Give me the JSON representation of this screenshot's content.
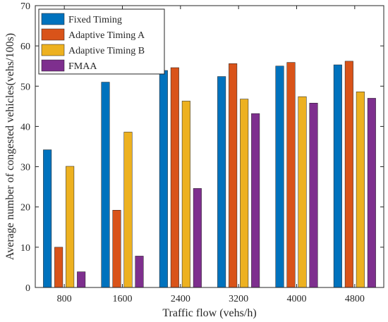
{
  "chart_data": {
    "type": "bar",
    "categories": [
      "800",
      "1600",
      "2400",
      "3200",
      "4000",
      "4800"
    ],
    "series": [
      {
        "name": "Fixed Timing",
        "color": "#0072BD",
        "values": [
          34.2,
          51.0,
          53.9,
          52.4,
          55.0,
          55.3
        ]
      },
      {
        "name": "Adaptive Timing A",
        "color": "#D95319",
        "values": [
          10.0,
          19.2,
          54.6,
          55.6,
          55.9,
          56.2
        ]
      },
      {
        "name": "Adaptive Timing B",
        "color": "#EDB120",
        "values": [
          30.1,
          38.6,
          46.3,
          46.8,
          47.4,
          48.6
        ]
      },
      {
        "name": "FMAA",
        "color": "#7E2F8E",
        "values": [
          3.9,
          7.8,
          24.6,
          43.2,
          45.8,
          47.0
        ]
      }
    ],
    "xlabel": "Traffic flow (vehs/h)",
    "ylabel": "Average number of congested vehicles(vehs/100s)",
    "ylim": [
      0,
      70
    ],
    "yticks": [
      0,
      10,
      20,
      30,
      40,
      50,
      60,
      70
    ],
    "grid": false,
    "legend_position": "top-left"
  }
}
